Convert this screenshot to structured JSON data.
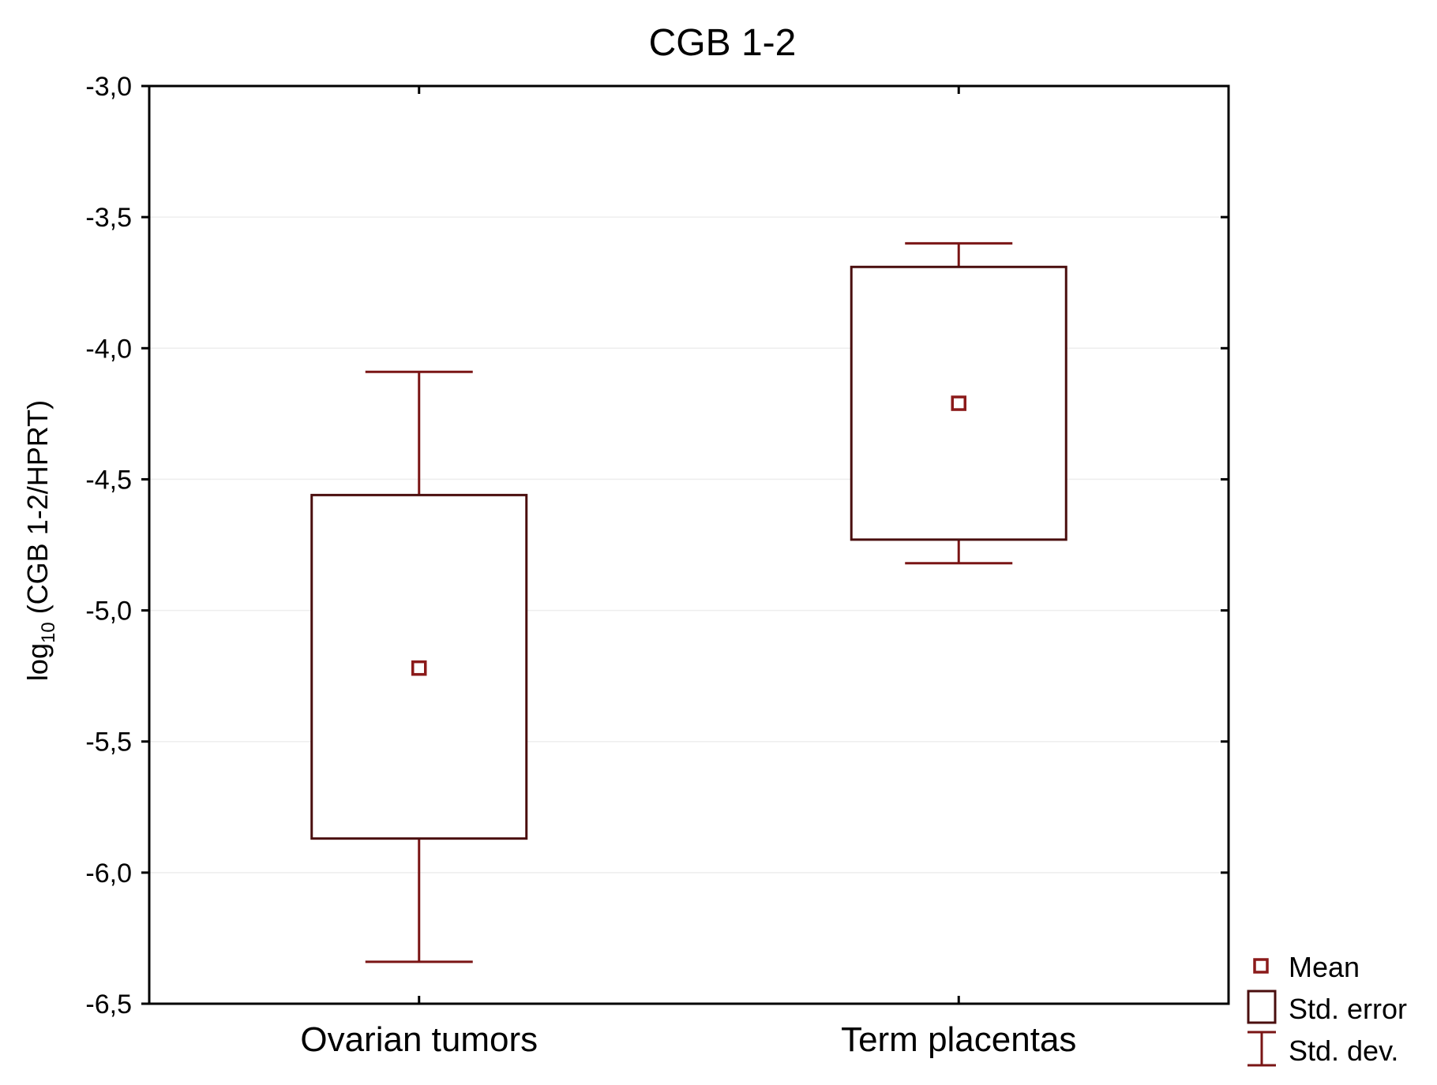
{
  "chart_data": {
    "type": "box",
    "title": "CGB 1-2",
    "ylabel_main": "log",
    "ylabel_sub": "10",
    "ylabel_rest": " (CGB 1-2/HPRT)",
    "xlabel": "",
    "ylim": [
      -6.5,
      -3.0
    ],
    "yticks": [
      -3.0,
      -3.5,
      -4.0,
      -4.5,
      -5.0,
      -5.5,
      -6.0,
      -6.5
    ],
    "ytick_labels": [
      "-3,0",
      "-3,5",
      "-4,0",
      "-4,5",
      "-5,0",
      "-5,5",
      "-6,0",
      "-6,5"
    ],
    "grid": true,
    "legend_position": "bottom-right",
    "categories": [
      "Ovarian tumors",
      "Term placentas"
    ],
    "groups": [
      {
        "category": "Ovarian tumors",
        "mean": -5.22,
        "se_low": -5.87,
        "se_high": -4.56,
        "sd_low": -6.34,
        "sd_high": -4.09
      },
      {
        "category": "Term placentas",
        "mean": -4.21,
        "se_low": -4.73,
        "se_high": -3.69,
        "sd_low": -4.82,
        "sd_high": -3.6
      }
    ],
    "legend": [
      {
        "key": "mean",
        "label": "Mean"
      },
      {
        "key": "se",
        "label": "Std. error"
      },
      {
        "key": "sd",
        "label": "Std. dev."
      }
    ],
    "colors": {
      "mean": "#8b1a1a",
      "box": "#4a0e0e",
      "whisker": "#7a1515",
      "axis": "#000000",
      "grid": "#eeeeee"
    }
  }
}
